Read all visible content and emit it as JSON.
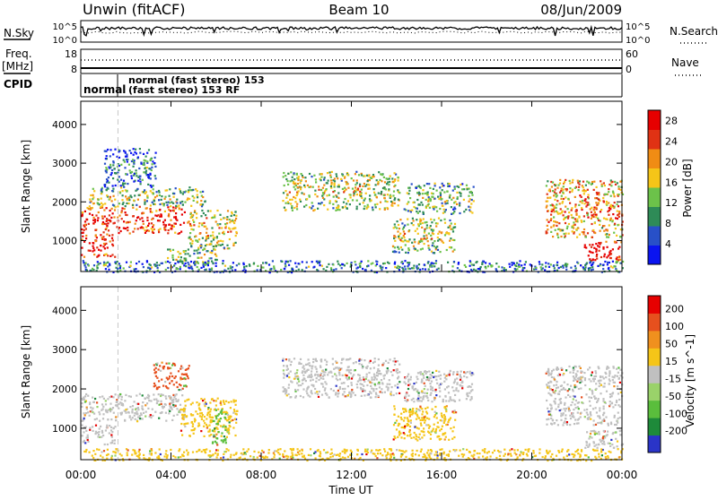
{
  "header": {
    "station": "Unwin (fitACF)",
    "beam": "Beam 10",
    "date": "08/Jun/2009"
  },
  "top_panels": {
    "nsky_label": "N.Sky",
    "nsky_ticks": [
      "10^5",
      "10^0"
    ],
    "nsearch_label": "N.Search",
    "nsearch_ticks": [
      "10^5",
      "10^0"
    ],
    "freq_label": "Freq.",
    "freq_unit": "[MHz]",
    "freq_ticks": [
      "18",
      "8"
    ],
    "nave_label": "Nave",
    "nave_ticks": [
      "60",
      "0"
    ],
    "cpid_label": "CPID",
    "cpid_segments": [
      {
        "start_hour": 0.0,
        "end_hour": 1.65,
        "text": "normal"
      },
      {
        "start_hour": 1.65,
        "end_hour": 24.0,
        "text_lines": [
          "normal (fast stereo) 153",
          "(fast stereo) 153 RF"
        ]
      }
    ]
  },
  "chart_data": [
    {
      "type": "heatmap",
      "panel": "power",
      "ylabel": "Slant Range [km]",
      "xlabel": "Time UT",
      "x_tick_labels": [
        "00:00",
        "04:00",
        "08:00",
        "12:00",
        "16:00",
        "20:00",
        "00:00"
      ],
      "x_tick_hours": [
        0,
        4,
        8,
        12,
        16,
        20,
        24
      ],
      "y_tick_labels": [
        "1000",
        "2000",
        "3000",
        "4000"
      ],
      "xlim_hours": [
        0,
        24
      ],
      "ylim_km": [
        200,
        4600
      ],
      "colorbar": {
        "label": "Power [dB]",
        "tick_labels": [
          "4",
          "8",
          "12",
          "16",
          "20",
          "24",
          "28"
        ],
        "range": [
          0,
          30
        ],
        "colors": [
          "#0a14f0",
          "#2850c8",
          "#2e8b57",
          "#6cc24a",
          "#f5c518",
          "#f08c14",
          "#e03214",
          "#e60000"
        ]
      },
      "scatter_regions": [
        {
          "t0": 0.0,
          "t1": 1.5,
          "r0": 600,
          "r1": 1200,
          "level": 0.8
        },
        {
          "t0": 0.0,
          "t1": 4.6,
          "r0": 1200,
          "r1": 1900,
          "level": 0.75
        },
        {
          "t0": 0.3,
          "t1": 5.5,
          "r0": 1900,
          "r1": 2400,
          "level": 0.35
        },
        {
          "t0": 1.0,
          "t1": 3.3,
          "r0": 2400,
          "r1": 3400,
          "level": 0.1
        },
        {
          "t0": 4.7,
          "t1": 6.9,
          "r0": 800,
          "r1": 1800,
          "level": 0.45
        },
        {
          "t0": 3.8,
          "t1": 6.0,
          "r0": 400,
          "r1": 800,
          "level": 0.3
        },
        {
          "t0": 8.9,
          "t1": 14.1,
          "r0": 1800,
          "r1": 2800,
          "level": 0.4
        },
        {
          "t0": 14.3,
          "t1": 17.4,
          "r0": 1700,
          "r1": 2500,
          "level": 0.3
        },
        {
          "t0": 13.8,
          "t1": 16.6,
          "r0": 700,
          "r1": 1600,
          "level": 0.4
        },
        {
          "t0": 20.6,
          "t1": 24.0,
          "r0": 1100,
          "r1": 2600,
          "level": 0.55
        },
        {
          "t0": 22.3,
          "t1": 24.0,
          "r0": 500,
          "r1": 1000,
          "level": 0.9
        },
        {
          "t0": 0.0,
          "t1": 24.0,
          "r0": 200,
          "r1": 500,
          "level": 0.15
        }
      ]
    },
    {
      "type": "heatmap",
      "panel": "velocity",
      "ylabel": "Slant Range [km]",
      "xlabel": "Time UT",
      "x_tick_labels": [
        "00:00",
        "04:00",
        "08:00",
        "12:00",
        "16:00",
        "20:00",
        "00:00"
      ],
      "x_tick_hours": [
        0,
        4,
        8,
        12,
        16,
        20,
        24
      ],
      "y_tick_labels": [
        "1000",
        "2000",
        "3000",
        "4000"
      ],
      "xlim_hours": [
        0,
        24
      ],
      "ylim_km": [
        200,
        4600
      ],
      "colorbar": {
        "label": "Velocity [m s^-1]",
        "tick_labels": [
          "200",
          "100",
          "50",
          "15",
          "-15",
          "-50",
          "-100",
          "-200"
        ],
        "range": [
          -250,
          250
        ],
        "colors": [
          "#2a34c8",
          "#1e8a3a",
          "#5abe3c",
          "#9ad26a",
          "#c0c0c0",
          "#f5c518",
          "#f0901e",
          "#e6501e",
          "#e60000"
        ]
      },
      "scatter_regions": [
        {
          "t0": 0.0,
          "t1": 4.6,
          "r0": 1200,
          "r1": 1900,
          "color": "#c0c0c0"
        },
        {
          "t0": 0.0,
          "t1": 1.5,
          "r0": 600,
          "r1": 1100,
          "color": "#c0c0c0"
        },
        {
          "t0": 3.2,
          "t1": 4.8,
          "r0": 2000,
          "r1": 2700,
          "color": "#e6501e"
        },
        {
          "t0": 4.4,
          "t1": 6.9,
          "r0": 800,
          "r1": 1800,
          "color": "#f5c518"
        },
        {
          "t0": 5.8,
          "t1": 6.4,
          "r0": 600,
          "r1": 1500,
          "color": "#5abe3c"
        },
        {
          "t0": 8.9,
          "t1": 14.1,
          "r0": 1800,
          "r1": 2800,
          "color": "#c0c0c0"
        },
        {
          "t0": 14.3,
          "t1": 17.4,
          "r0": 1700,
          "r1": 2500,
          "color": "#c0c0c0"
        },
        {
          "t0": 13.8,
          "t1": 16.6,
          "r0": 700,
          "r1": 1600,
          "color": "#f5c518"
        },
        {
          "t0": 20.6,
          "t1": 24.0,
          "r0": 1100,
          "r1": 2600,
          "color": "#c0c0c0"
        },
        {
          "t0": 22.3,
          "t1": 24.0,
          "r0": 500,
          "r1": 1000,
          "color": "#c0c0c0"
        },
        {
          "t0": 0.0,
          "t1": 24.0,
          "r0": 200,
          "r1": 500,
          "color": "#f5c518"
        }
      ]
    }
  ]
}
